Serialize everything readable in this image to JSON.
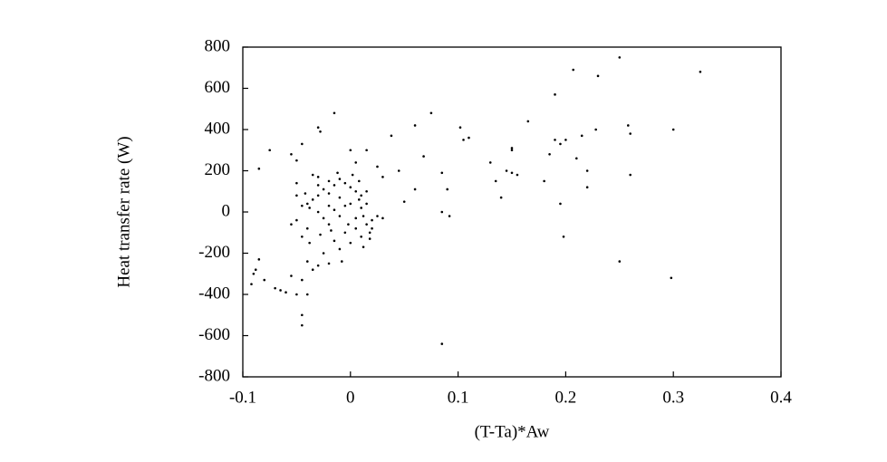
{
  "chart_data": {
    "type": "scatter",
    "x_label": "(T-Ta)*Aw",
    "y_label": "Heat transfer rate (W)",
    "xlim": [
      -0.1,
      0.4
    ],
    "xticks": [
      -0.1,
      0,
      0.1,
      0.2,
      0.3,
      0.4
    ],
    "ylim": [
      -800,
      800
    ],
    "yticks": [
      -800,
      -600,
      -400,
      -200,
      0,
      200,
      400,
      600,
      800
    ],
    "color": "#000000",
    "x": [
      -0.09,
      -0.085,
      -0.088,
      -0.092,
      -0.08,
      -0.07,
      -0.065,
      -0.06,
      -0.055,
      -0.05,
      -0.045,
      -0.045,
      -0.04,
      -0.045,
      -0.085,
      -0.075,
      -0.055,
      -0.05,
      -0.045,
      -0.05,
      -0.03,
      -0.028,
      -0.015,
      0.0,
      0.015,
      0.005,
      0.03,
      0.038,
      0.06,
      0.068,
      0.075,
      0.085,
      0.085,
      0.09,
      0.092,
      0.06,
      0.102,
      0.105,
      0.11,
      0.13,
      0.135,
      0.14,
      0.145,
      0.15,
      0.15,
      0.15,
      0.155,
      0.165,
      0.18,
      0.185,
      0.19,
      0.19,
      0.195,
      0.195,
      0.198,
      0.2,
      0.207,
      0.21,
      0.215,
      0.22,
      0.22,
      0.228,
      0.23,
      0.25,
      0.25,
      0.258,
      0.26,
      0.26,
      0.3,
      0.298,
      0.325,
      0.085,
      0.05,
      0.025,
      0.045,
      0.03,
      -0.04,
      -0.038,
      -0.035,
      -0.03,
      -0.03,
      -0.025,
      -0.02,
      -0.02,
      -0.015,
      -0.01,
      -0.01,
      -0.005,
      0.0,
      0.0,
      0.005,
      0.008,
      0.01,
      0.012,
      0.015,
      0.015,
      0.018,
      0.02,
      0.01,
      0.005,
      0.0,
      -0.005,
      -0.01,
      -0.015,
      -0.02,
      -0.025,
      -0.03,
      -0.035,
      -0.04,
      -0.04,
      -0.045,
      -0.05,
      -0.05,
      -0.055,
      -0.045,
      -0.03,
      -0.035,
      -0.025,
      -0.02,
      -0.015,
      -0.01,
      -0.005,
      0.005,
      0.01,
      0.015,
      -0.03,
      -0.02,
      -0.012,
      0.002,
      0.008,
      0.018,
      0.02,
      0.025,
      -0.038,
      -0.042,
      -0.028,
      -0.008,
      -0.002,
      0.012,
      -0.018
    ],
    "values": [
      -300,
      -230,
      -280,
      -350,
      -330,
      -370,
      -380,
      -390,
      -310,
      -400,
      -500,
      -550,
      -400,
      -330,
      210,
      300,
      280,
      140,
      330,
      250,
      410,
      390,
      480,
      300,
      300,
      240,
      170,
      370,
      110,
      270,
      480,
      190,
      0,
      110,
      -20,
      420,
      410,
      350,
      360,
      240,
      150,
      70,
      200,
      300,
      310,
      190,
      180,
      440,
      150,
      280,
      350,
      570,
      40,
      330,
      -120,
      350,
      690,
      260,
      370,
      200,
      120,
      400,
      660,
      750,
      -240,
      420,
      380,
      180,
      400,
      -320,
      680,
      -640,
      50,
      220,
      200,
      -30,
      40,
      20,
      60,
      80,
      0,
      110,
      150,
      90,
      130,
      160,
      70,
      140,
      120,
      40,
      100,
      60,
      20,
      -20,
      -60,
      40,
      -100,
      -40,
      -120,
      -80,
      -150,
      -100,
      -180,
      -140,
      -250,
      -200,
      -260,
      -280,
      -240,
      -80,
      -120,
      -40,
      80,
      -60,
      30,
      170,
      180,
      -30,
      -60,
      10,
      -20,
      30,
      -30,
      80,
      100,
      130,
      30,
      190,
      180,
      150,
      -130,
      -80,
      -20,
      -150,
      90,
      -110,
      -240,
      -60,
      -170,
      -90
    ]
  }
}
